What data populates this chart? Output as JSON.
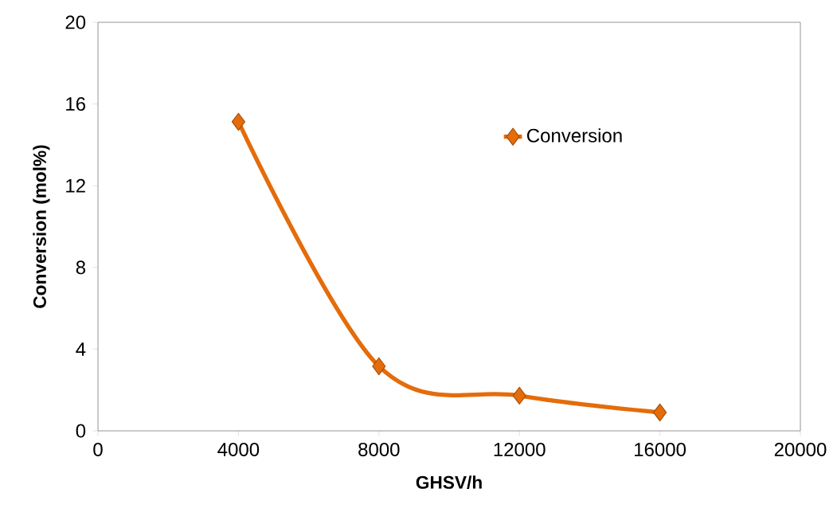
{
  "chart_data": {
    "type": "line",
    "xlabel": "GHSV/h",
    "ylabel": "Conversion (mol%)",
    "x": [
      4000,
      8000,
      12000,
      16000
    ],
    "series": [
      {
        "name": "Conversion",
        "color": "#e46c0a",
        "values": [
          15.13,
          3.16,
          1.72,
          0.9
        ]
      }
    ],
    "xlim": [
      0,
      20000
    ],
    "xticks": [
      0,
      4000,
      8000,
      12000,
      16000,
      20000
    ],
    "ylim": [
      0,
      20
    ],
    "yticks": [
      0,
      4,
      8,
      12,
      16,
      20
    ],
    "marker": "diamond",
    "legend": "top right",
    "grid": false
  }
}
